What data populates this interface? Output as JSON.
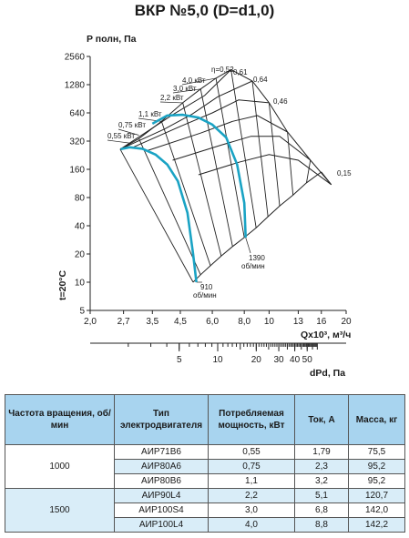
{
  "title": "ВКР №5,0 (D=d1,0)",
  "chart_data": {
    "type": "line",
    "title": "ВКР №5,0 (D=d1,0)",
    "ylabel": "P полн, Па",
    "xlabel": "Qx10³, м³/ч",
    "x2label": "dPd, Па",
    "temp_label": "t=20°C",
    "x_scale": "log",
    "y_scale": "log",
    "xlim": [
      2.0,
      20
    ],
    "ylim": [
      5,
      2560
    ],
    "x_ticks": [
      2.0,
      2.7,
      3.5,
      4.5,
      6.0,
      8.0,
      10,
      13,
      16,
      20
    ],
    "x_tick_labels": [
      "2,0",
      "2,7",
      "3,5",
      "4,5",
      "6,0",
      "8,0",
      "10",
      "13",
      "16",
      "20"
    ],
    "y_ticks": [
      5,
      10,
      20,
      40,
      80,
      160,
      320,
      640,
      1280,
      2560
    ],
    "y_tick_labels": [
      "5",
      "10",
      "20",
      "40",
      "80",
      "160",
      "320",
      "640",
      "1280",
      "2560"
    ],
    "x2_ticks": [
      5,
      10,
      20,
      30,
      40,
      50
    ],
    "x2_tick_labels": [
      "5",
      "10",
      "20",
      "30",
      "40",
      "50"
    ],
    "grid": false,
    "efficiency_labels": [
      "η=0,52",
      "0,61",
      "0,64",
      "0,46",
      "0,15"
    ],
    "power_labels": [
      "0,55 кВт",
      "0,75 кВт",
      "1,1 кВт",
      "2,2 кВт",
      "3,0 кВт",
      "4,0 кВт"
    ],
    "series": [
      {
        "name": "910 об/мин",
        "label_lines": [
          "910",
          "об/мин"
        ],
        "color": "#1aa3c4",
        "x": [
          2.63,
          2.85,
          3.2,
          3.6,
          4.0,
          4.4,
          4.8,
          5.05,
          5.2
        ],
        "y": [
          262,
          275,
          265,
          230,
          180,
          120,
          55,
          20,
          10
        ]
      },
      {
        "name": "1390 об/мин",
        "label_lines": [
          "1390",
          "об/мин"
        ],
        "color": "#1aa3c4",
        "x": [
          3.5,
          4.0,
          4.6,
          5.3,
          6.0,
          6.8,
          7.5,
          8.0,
          8.1
        ],
        "y": [
          490,
          600,
          610,
          570,
          480,
          350,
          180,
          70,
          30
        ]
      }
    ]
  },
  "table": {
    "headers": {
      "speed": "Частота вращения, об/мин",
      "motor": "Тип электродвигателя",
      "power": "Потребляемая мощность, кВт",
      "current": "Ток, А",
      "mass": "Масса, кг"
    },
    "groups": [
      {
        "speed": "1000",
        "rows": [
          {
            "motor": "АИР71B6",
            "power": "0,55",
            "current": "1,79",
            "mass": "75,5"
          },
          {
            "motor": "АИР80A6",
            "power": "0,75",
            "current": "2,3",
            "mass": "95,2"
          },
          {
            "motor": "АИР80B6",
            "power": "1,1",
            "current": "3,2",
            "mass": "95,2"
          }
        ]
      },
      {
        "speed": "1500",
        "rows": [
          {
            "motor": "АИР90L4",
            "power": "2,2",
            "current": "5,1",
            "mass": "120,7"
          },
          {
            "motor": "АИР100S4",
            "power": "3,0",
            "current": "6,8",
            "mass": "142,0"
          },
          {
            "motor": "АИР100L4",
            "power": "4,0",
            "current": "8,8",
            "mass": "142,2"
          }
        ]
      }
    ]
  }
}
